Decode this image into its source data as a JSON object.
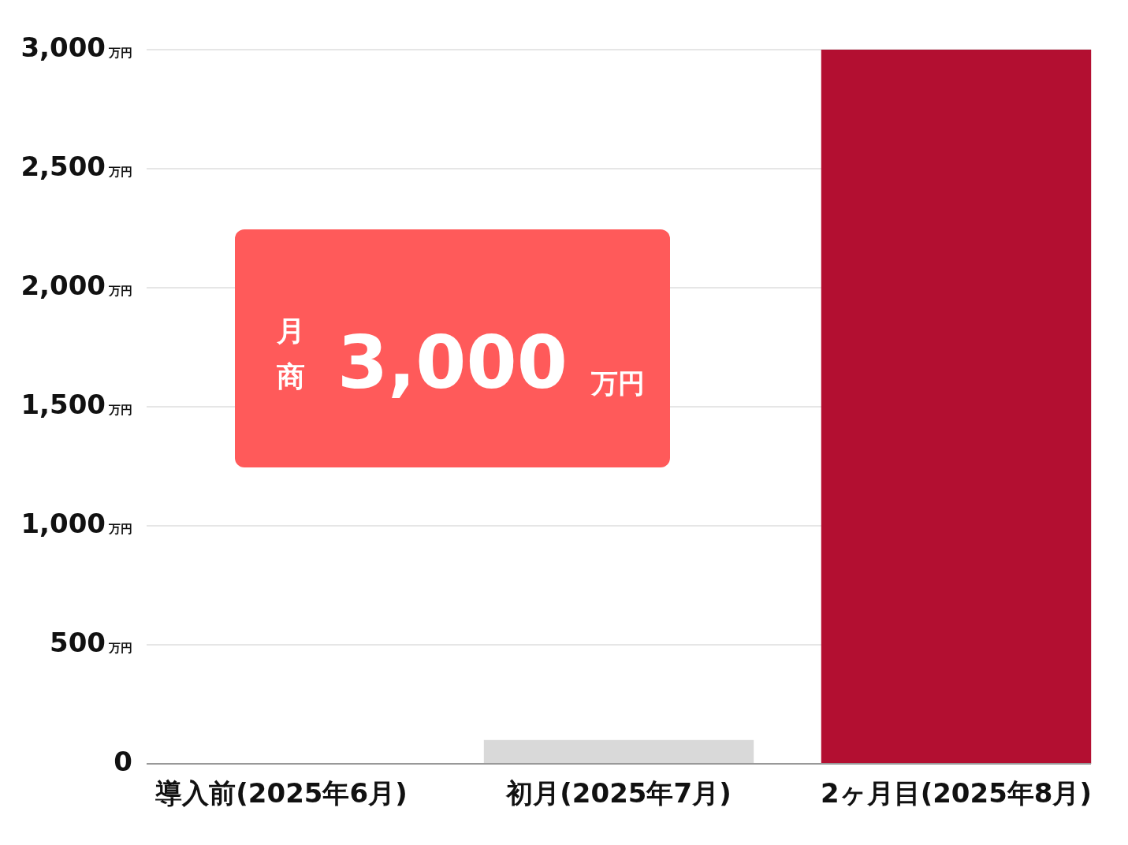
{
  "chart_data": {
    "type": "bar",
    "categories": [
      "導入前(2025年6月)",
      "初月(2025年7月)",
      "2ヶ月目(2025年8月)"
    ],
    "values": [
      0,
      100,
      3000
    ],
    "colors": [
      "#d9d9d9",
      "#d9d9d9",
      "#b30f31"
    ],
    "ylim": [
      0,
      3000
    ],
    "yticks": [
      {
        "value": 0,
        "label": "0"
      },
      {
        "value": 500,
        "label": "500万円"
      },
      {
        "value": 1000,
        "label": "1,000万円"
      },
      {
        "value": 1500,
        "label": "1,500万円"
      },
      {
        "value": 2000,
        "label": "2,000万円"
      },
      {
        "value": 2500,
        "label": "2,500万円"
      },
      {
        "value": 3000,
        "label": "3,000万円"
      }
    ],
    "grid": "y",
    "annotations": [
      "月商",
      "3,000",
      "万円"
    ]
  }
}
